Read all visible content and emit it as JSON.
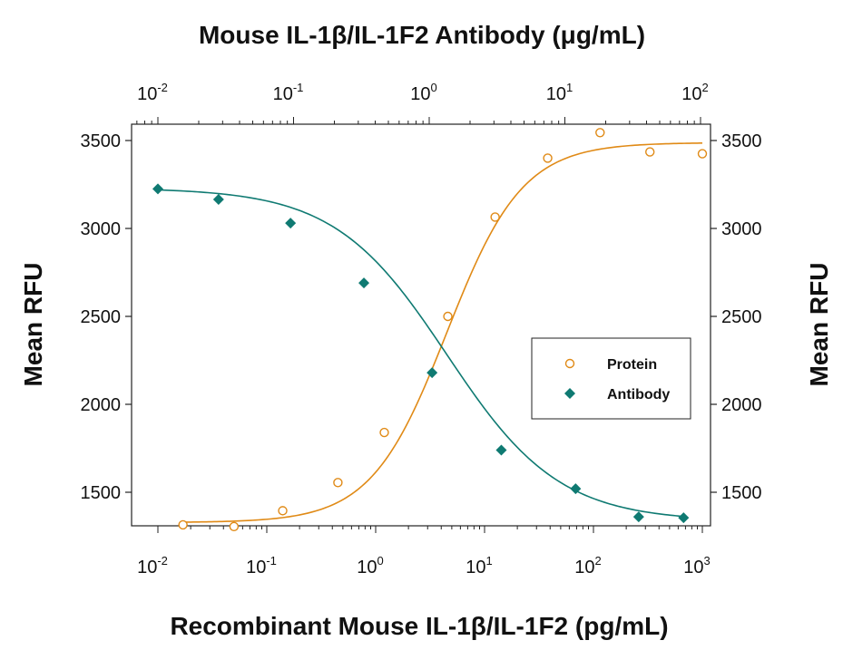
{
  "chart_data": {
    "type": "scatter",
    "title": "Mouse IL-1β/IL-1F2 Antibody (μg/mL)",
    "xlabel": "Recombinant Mouse IL-1β/IL-1F2 (pg/mL)",
    "x2label": "Mouse IL-1β/IL-1F2 Antibody (μg/mL)",
    "ylabel": "Mean RFU",
    "y2label": "Mean RFU",
    "x_scale": "log",
    "xlim": [
      0.01,
      2000
    ],
    "x2_scale": "log",
    "x2lim": [
      0.005,
      200
    ],
    "ylim": [
      1300,
      3600
    ],
    "y_ticks": [
      1500,
      2000,
      2500,
      3000,
      3500
    ],
    "x_ticks": [
      {
        "base": "10",
        "exp": "-2",
        "value": 0.01
      },
      {
        "base": "10",
        "exp": "-1",
        "value": 0.1
      },
      {
        "base": "10",
        "exp": "0",
        "value": 1
      },
      {
        "base": "10",
        "exp": "1",
        "value": 10
      },
      {
        "base": "10",
        "exp": "2",
        "value": 100
      },
      {
        "base": "10",
        "exp": "3",
        "value": 1000
      }
    ],
    "x2_ticks": [
      {
        "base": "10",
        "exp": "-2",
        "value": 0.01
      },
      {
        "base": "10",
        "exp": "-1",
        "value": 0.1
      },
      {
        "base": "10",
        "exp": "0",
        "value": 1
      },
      {
        "base": "10",
        "exp": "1",
        "value": 10
      },
      {
        "base": "10",
        "exp": "2",
        "value": 100
      }
    ],
    "legend_position": "right",
    "series": [
      {
        "name": "Protein",
        "axis": "bottom",
        "marker": "open-circle",
        "color": "#e08a16",
        "x": [
          0.017,
          0.05,
          0.14,
          0.45,
          1.2,
          4.6,
          12.5,
          38,
          115,
          330,
          1000
        ],
        "y": [
          1315,
          1305,
          1395,
          1555,
          1840,
          2500,
          3065,
          3400,
          3545,
          3435,
          3425
        ]
      },
      {
        "name": "Antibody",
        "axis": "top",
        "marker": "filled-diamond",
        "color": "#0f7a72",
        "x": [
          0.01,
          0.028,
          0.095,
          0.33,
          1.05,
          3.4,
          12,
          35,
          75
        ],
        "y": [
          3225,
          3165,
          3030,
          2690,
          2180,
          1740,
          1520,
          1360,
          1355
        ]
      }
    ]
  }
}
